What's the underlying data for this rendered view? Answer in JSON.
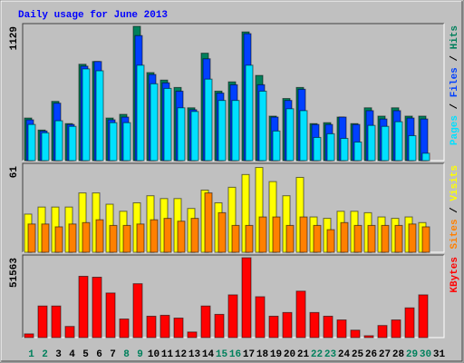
{
  "chart_data": [
    {
      "type": "bar",
      "title": "Daily usage for June 2013",
      "ylim": [
        0,
        1129
      ],
      "yticks": [
        1129
      ],
      "legend_separator": " / ",
      "series": [
        {
          "name": "Hits",
          "color": "#00805c",
          "values": [
            358,
            257,
            498,
            311,
            810,
            833,
            358,
            389,
            1129,
            740,
            677,
            615,
            444,
            903,
            584,
            662,
            1082,
            716,
            374,
            522,
            615,
            311,
            319,
            366,
            311,
            444,
            374,
            444,
            374,
            374,
            null
          ]
        },
        {
          "name": "Files",
          "color": "#0040ff",
          "values": [
            343,
            249,
            483,
            304,
            794,
            833,
            343,
            366,
            1051,
            724,
            654,
            584,
            428,
            856,
            568,
            638,
            1067,
            638,
            366,
            506,
            600,
            304,
            304,
            366,
            304,
            420,
            350,
            420,
            358,
            350,
            null
          ]
        },
        {
          "name": "Pages",
          "color": "#00e0ff",
          "values": [
            304,
            234,
            335,
            288,
            771,
            755,
            319,
            319,
            802,
            646,
            607,
            444,
            413,
            685,
            506,
            506,
            802,
            584,
            249,
            436,
            420,
            195,
            226,
            187,
            156,
            296,
            288,
            327,
            210,
            62,
            null
          ]
        }
      ]
    },
    {
      "type": "bar",
      "ylim": [
        0,
        61
      ],
      "yticks": [
        61
      ],
      "legend_separator": " / ",
      "series": [
        {
          "name": "Visits",
          "color": "#ffff00",
          "values": [
            27,
            32,
            32,
            32,
            42,
            42,
            34,
            29,
            35,
            40,
            38,
            38,
            31,
            44,
            35,
            46,
            55,
            60,
            50,
            40,
            53,
            25,
            24,
            29,
            29,
            28,
            25,
            24,
            25,
            21,
            null
          ]
        },
        {
          "name": "Sites",
          "color": "#ff8000",
          "values": [
            20,
            20,
            18,
            20,
            21,
            23,
            19,
            19,
            20,
            23,
            24,
            22,
            24,
            42,
            28,
            19,
            19,
            25,
            25,
            19,
            25,
            19,
            16,
            21,
            19,
            19,
            19,
            19,
            20,
            18,
            null
          ]
        }
      ]
    },
    {
      "type": "bar",
      "ylim": [
        0,
        51563
      ],
      "yticks": [
        51563
      ],
      "categories": [
        "1",
        "2",
        "3",
        "4",
        "5",
        "6",
        "7",
        "8",
        "9",
        "10",
        "11",
        "12",
        "13",
        "14",
        "15",
        "16",
        "17",
        "18",
        "19",
        "20",
        "21",
        "22",
        "23",
        "24",
        "25",
        "26",
        "27",
        "28",
        "29",
        "30",
        "31"
      ],
      "category_colors": [
        "#00805c",
        "#00805c",
        "#000000",
        "#000000",
        "#000000",
        "#000000",
        "#000000",
        "#00805c",
        "#00805c",
        "#000000",
        "#000000",
        "#000000",
        "#000000",
        "#000000",
        "#00805c",
        "#00805c",
        "#000000",
        "#000000",
        "#000000",
        "#000000",
        "#000000",
        "#00805c",
        "#00805c",
        "#000000",
        "#000000",
        "#000000",
        "#000000",
        "#000000",
        "#00805c",
        "#00805c",
        "#000000"
      ],
      "series": [
        {
          "name": "KBytes",
          "color": "#ff0000",
          "values": [
            2398,
            20386,
            20386,
            7195,
            39573,
            38974,
            28780,
            11992,
            34776,
            13790,
            14390,
            12591,
            3597,
            20386,
            14990,
            27581,
            51563,
            26382,
            13790,
            16189,
            29979,
            16189,
            13790,
            11392,
            4796,
            1199,
            7794,
            11392,
            19187,
            27581,
            null
          ]
        }
      ]
    }
  ]
}
